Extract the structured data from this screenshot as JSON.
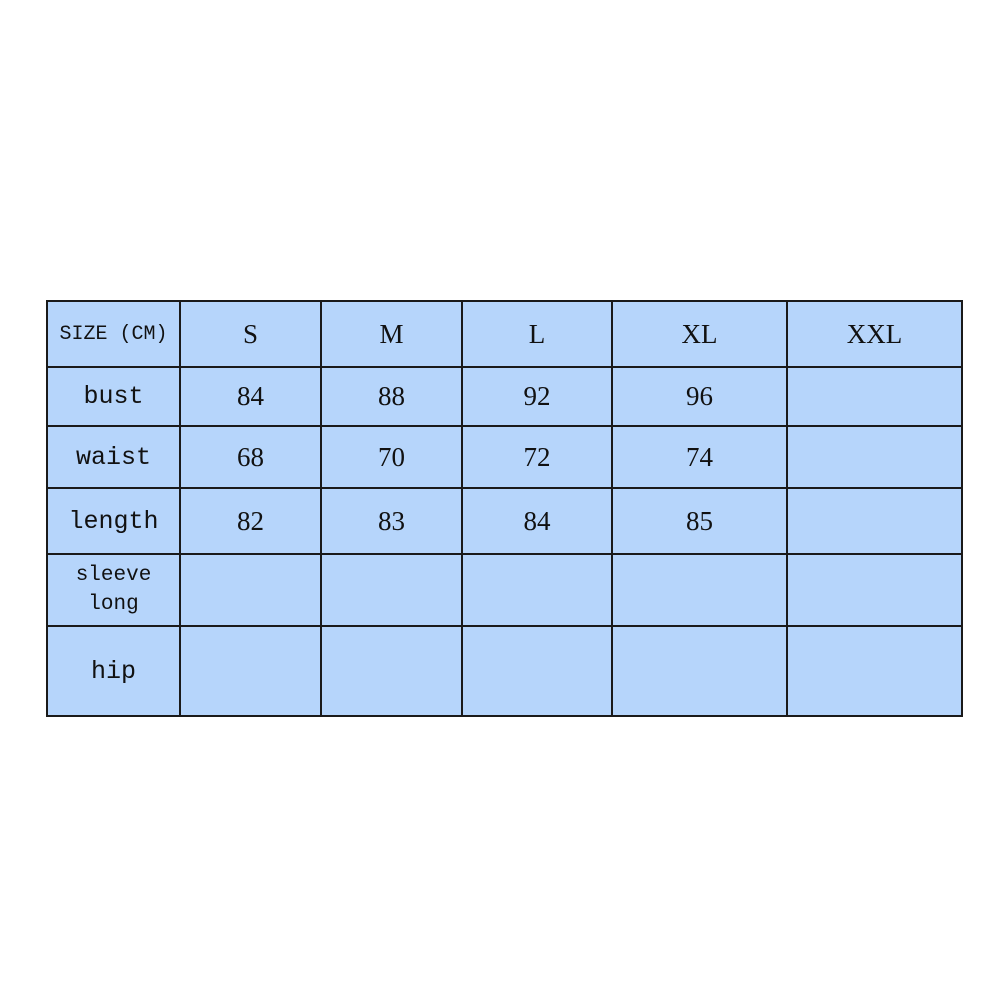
{
  "table": {
    "header": [
      "SIZE (CM)",
      "S",
      "M",
      "L",
      "XL",
      "XXL"
    ],
    "rows": [
      {
        "label": "bust",
        "values": [
          "84",
          "88",
          "92",
          "96",
          ""
        ]
      },
      {
        "label": "waist",
        "values": [
          "68",
          "70",
          "72",
          "74",
          ""
        ]
      },
      {
        "label": "length",
        "values": [
          "82",
          "83",
          "84",
          "85",
          ""
        ]
      },
      {
        "label": "sleeve long",
        "label_lines": [
          "sleeve",
          "long"
        ],
        "values": [
          "",
          "",
          "",
          "",
          ""
        ]
      },
      {
        "label": "hip",
        "values": [
          "",
          "",
          "",
          "",
          ""
        ]
      }
    ]
  },
  "colors": {
    "cell_bg": "#b6d5fb",
    "border": "#1a1a1a"
  }
}
